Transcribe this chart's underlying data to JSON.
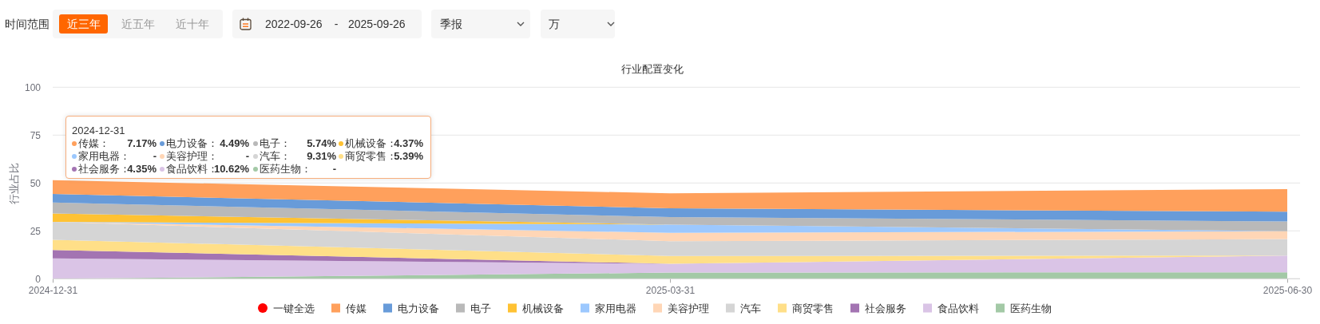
{
  "chart_data": {
    "type": "area",
    "stacked": true,
    "title": "行业配置变化",
    "ylabel": "行业占比",
    "categories": [
      "2024-12-31",
      "2025-03-31",
      "2025-06-30"
    ],
    "ylim": [
      0,
      100
    ],
    "yticks": [
      0,
      25,
      50,
      75,
      100
    ],
    "grid": "y",
    "legend": "bottom",
    "series": [
      {
        "name": "医药生物",
        "color": "#a3c9a6",
        "values": [
          0,
          3.2,
          3.4
        ]
      },
      {
        "name": "食品饮料",
        "color": "#dac4e6",
        "values": [
          10.62,
          4.6,
          8.7
        ]
      },
      {
        "name": "社会服务",
        "color": "#a374b2",
        "values": [
          4.35,
          0,
          0
        ]
      },
      {
        "name": "商贸零售",
        "color": "#ffdf88",
        "values": [
          5.39,
          4.1,
          0
        ]
      },
      {
        "name": "汽车",
        "color": "#d5d5d5",
        "values": [
          9.31,
          7.7,
          8.6
        ]
      },
      {
        "name": "美容护理",
        "color": "#ffd6b6",
        "values": [
          0,
          4.4,
          4.1
        ]
      },
      {
        "name": "家用电器",
        "color": "#9cc8fe",
        "values": [
          0,
          4.3,
          0
        ]
      },
      {
        "name": "机械设备",
        "color": "#ffc233",
        "values": [
          4.37,
          0,
          0
        ]
      },
      {
        "name": "电子",
        "color": "#b9b9b9",
        "values": [
          5.74,
          3.9,
          5.1
        ]
      },
      {
        "name": "电力设备",
        "color": "#689bd9",
        "values": [
          4.49,
          4.6,
          5.1
        ]
      },
      {
        "name": "传媒",
        "color": "#ffa05c",
        "values": [
          7.17,
          7.8,
          11.8
        ]
      }
    ],
    "annotations": [
      "时间范围",
      "近三年",
      "近五年",
      "近十年",
      "2022-09-26",
      "-",
      "2025-09-26",
      "季报",
      "万",
      "一键全选",
      "2024-12-31",
      "传媒：",
      "7.17%",
      "电力设备：",
      "4.49%",
      "电子：",
      "5.74%",
      "机械设备：",
      "4.37%",
      "家用电器：",
      "-",
      "美容护理：",
      "-",
      "汽车：",
      "9.31%",
      "商贸零售：",
      "5.39%",
      "社会服务：",
      "4.35%",
      "食品饮料：",
      "10.62%",
      "医药生物：",
      "-"
    ]
  }
}
